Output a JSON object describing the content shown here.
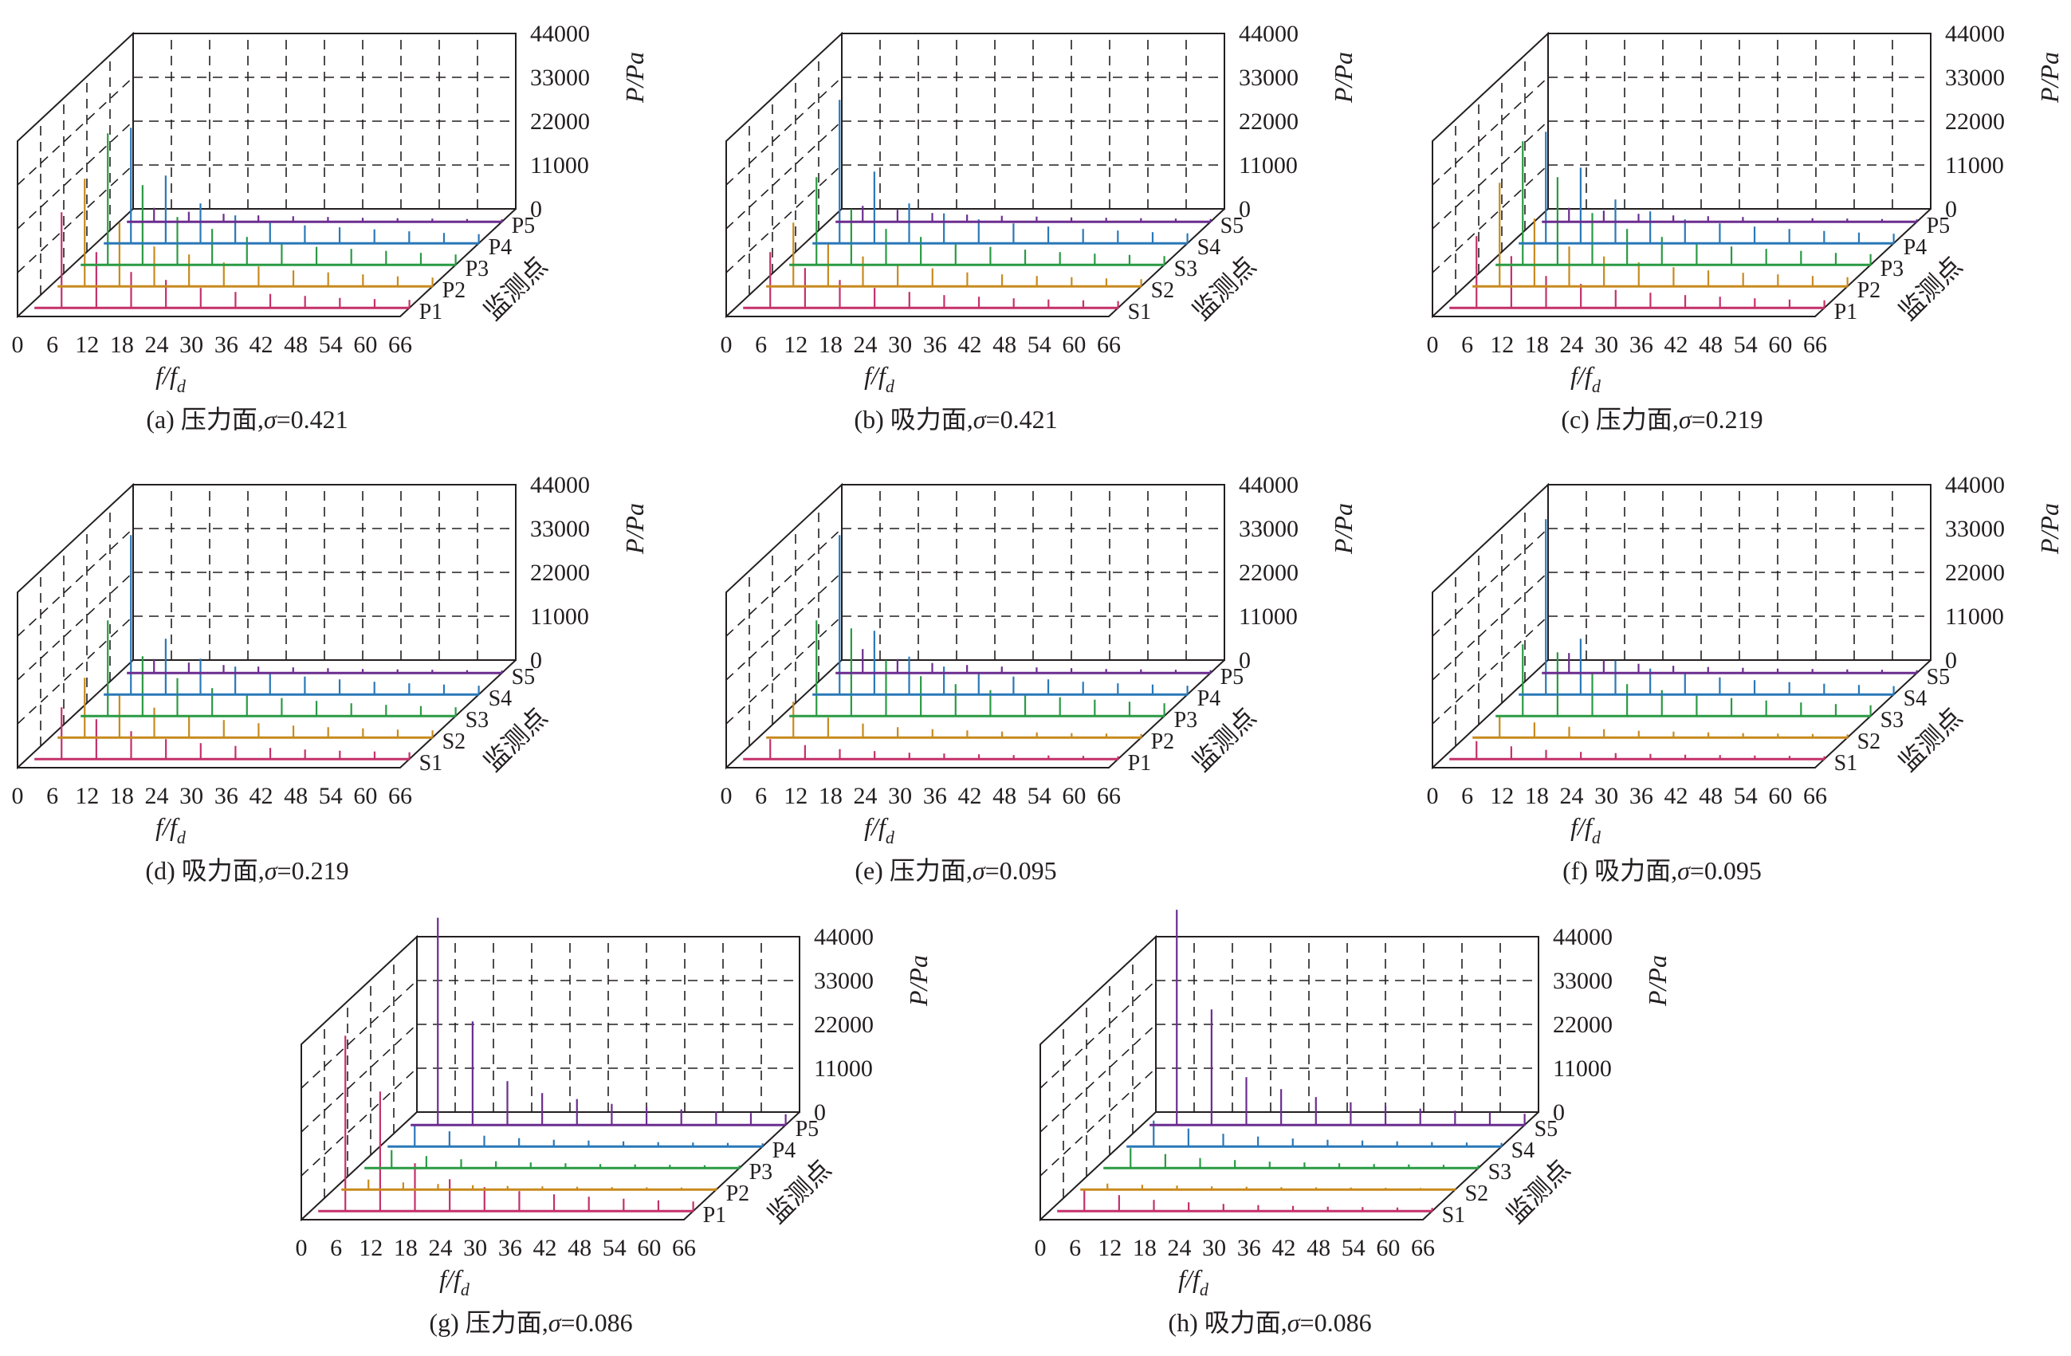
{
  "chart_data": [
    {
      "type": "3d-spectrum",
      "caption": "(a) 压力面,σ=0.421",
      "caption_prefix": "(a) 压力面,",
      "sigma_label": "σ",
      "sigma_value": "=0.421",
      "xlabel_main": "f/f",
      "xlabel_sub": "d",
      "zlabel": "P/Pa",
      "ylabel": "监测点",
      "x_ticks": [
        "0",
        "6",
        "12",
        "18",
        "24",
        "30",
        "36",
        "42",
        "48",
        "54",
        "60",
        "66"
      ],
      "z_ticks": [
        "0",
        "11000",
        "22000",
        "33000",
        "44000"
      ],
      "xlim": [
        0,
        66
      ],
      "zlim": [
        0,
        44000
      ],
      "series": [
        {
          "name": "P1",
          "color": "#c4306a",
          "values": [
            24000,
            14000,
            9000,
            7000,
            5000,
            4000,
            3500,
            3000,
            2500,
            2200,
            2000
          ]
        },
        {
          "name": "P2",
          "color": "#c88a1e",
          "values": [
            27000,
            16000,
            10000,
            8000,
            6000,
            5000,
            4000,
            3500,
            3000,
            2500,
            2200
          ]
        },
        {
          "name": "P3",
          "color": "#2a9a44",
          "values": [
            33000,
            20000,
            12000,
            9000,
            7000,
            5500,
            4500,
            4000,
            3500,
            3000,
            2600
          ]
        },
        {
          "name": "P4",
          "color": "#2a78b8",
          "values": [
            29000,
            17000,
            10000,
            7000,
            5500,
            4500,
            4000,
            3500,
            3000,
            2600,
            2300
          ]
        },
        {
          "name": "P5",
          "color": "#6b2d8f",
          "values": [
            3500,
            2500,
            2000,
            1600,
            1400,
            1200,
            1000,
            900,
            800,
            700,
            600
          ]
        }
      ]
    },
    {
      "type": "3d-spectrum",
      "caption": "(b) 吸力面,σ=0.421",
      "caption_prefix": "(b) 吸力面,",
      "sigma_label": "σ",
      "sigma_value": "=0.421",
      "xlabel_main": "f/f",
      "xlabel_sub": "d",
      "zlabel": "P/Pa",
      "ylabel": "监测点",
      "x_ticks": [
        "0",
        "6",
        "12",
        "18",
        "24",
        "30",
        "36",
        "42",
        "48",
        "54",
        "60",
        "66"
      ],
      "z_ticks": [
        "0",
        "11000",
        "22000",
        "33000",
        "44000"
      ],
      "xlim": [
        0,
        66
      ],
      "zlim": [
        0,
        44000
      ],
      "series": [
        {
          "name": "S1",
          "color": "#c4306a",
          "values": [
            14000,
            10000,
            7000,
            5000,
            4000,
            3200,
            2800,
            2400,
            2100,
            1900,
            1700
          ]
        },
        {
          "name": "S2",
          "color": "#c88a1e",
          "values": [
            16000,
            11000,
            7500,
            5500,
            4500,
            3500,
            3000,
            2600,
            2300,
            2000,
            1800
          ]
        },
        {
          "name": "S3",
          "color": "#2a9a44",
          "values": [
            22000,
            14000,
            9000,
            7000,
            5500,
            4500,
            3800,
            3200,
            2800,
            2500,
            2200
          ]
        },
        {
          "name": "S4",
          "color": "#2a78b8",
          "values": [
            36000,
            18000,
            10000,
            7500,
            6000,
            5000,
            4200,
            3600,
            3200,
            2800,
            2500
          ]
        },
        {
          "name": "S5",
          "color": "#6b2d8f",
          "values": [
            4000,
            3000,
            2200,
            1800,
            1500,
            1300,
            1100,
            1000,
            900,
            800,
            700
          ]
        }
      ]
    },
    {
      "type": "3d-spectrum",
      "caption": "(c) 压力面,σ=0.219",
      "caption_prefix": "(c) 压力面,",
      "sigma_label": "σ",
      "sigma_value": "=0.219",
      "xlabel_main": "f/f",
      "xlabel_sub": "d",
      "zlabel": "P/Pa",
      "ylabel": "监测点",
      "x_ticks": [
        "0",
        "6",
        "12",
        "18",
        "24",
        "30",
        "36",
        "42",
        "48",
        "54",
        "60",
        "66"
      ],
      "z_ticks": [
        "0",
        "11000",
        "22000",
        "33000",
        "44000"
      ],
      "xlim": [
        0,
        66
      ],
      "zlim": [
        0,
        44000
      ],
      "series": [
        {
          "name": "P1",
          "color": "#c4306a",
          "values": [
            18000,
            13000,
            8000,
            6000,
            4500,
            3800,
            3200,
            2800,
            2400,
            2100,
            1900
          ]
        },
        {
          "name": "P2",
          "color": "#c88a1e",
          "values": [
            26000,
            17000,
            10000,
            7500,
            6000,
            4800,
            4000,
            3400,
            3000,
            2600,
            2300
          ]
        },
        {
          "name": "P3",
          "color": "#2a9a44",
          "values": [
            31000,
            22000,
            13000,
            9000,
            7000,
            5500,
            4600,
            4000,
            3500,
            3000,
            2700
          ]
        },
        {
          "name": "P4",
          "color": "#2a78b8",
          "values": [
            28000,
            19000,
            11000,
            8000,
            6000,
            5000,
            4200,
            3600,
            3100,
            2700,
            2400
          ]
        },
        {
          "name": "P5",
          "color": "#6b2d8f",
          "values": [
            3500,
            2800,
            2000,
            1600,
            1400,
            1200,
            1000,
            900,
            800,
            700,
            600
          ]
        }
      ]
    },
    {
      "type": "3d-spectrum",
      "caption": "(d) 吸力面,σ=0.219",
      "caption_prefix": "(d) 吸力面,",
      "sigma_label": "σ",
      "sigma_value": "=0.219",
      "xlabel_main": "f/f",
      "xlabel_sub": "d",
      "zlabel": "P/Pa",
      "ylabel": "监测点",
      "x_ticks": [
        "0",
        "6",
        "12",
        "18",
        "24",
        "30",
        "36",
        "42",
        "48",
        "54",
        "60",
        "66"
      ],
      "z_ticks": [
        "0",
        "11000",
        "22000",
        "33000",
        "44000"
      ],
      "xlim": [
        0,
        66
      ],
      "zlim": [
        0,
        44000
      ],
      "series": [
        {
          "name": "S1",
          "color": "#c4306a",
          "values": [
            13000,
            10000,
            7000,
            5000,
            4000,
            3300,
            2800,
            2400,
            2100,
            1900,
            1700
          ]
        },
        {
          "name": "S2",
          "color": "#c88a1e",
          "values": [
            15000,
            11000,
            7500,
            5500,
            4400,
            3600,
            3000,
            2600,
            2300,
            2000,
            1800
          ]
        },
        {
          "name": "S3",
          "color": "#2a9a44",
          "values": [
            24000,
            15000,
            9500,
            7000,
            5500,
            4500,
            3800,
            3200,
            2800,
            2500,
            2200
          ]
        },
        {
          "name": "S4",
          "color": "#2a78b8",
          "values": [
            40000,
            14000,
            9000,
            7000,
            5500,
            4500,
            3800,
            3200,
            2800,
            2500,
            2200
          ]
        },
        {
          "name": "S5",
          "color": "#6b2d8f",
          "values": [
            3500,
            2600,
            2000,
            1600,
            1400,
            1200,
            1000,
            900,
            800,
            700,
            600
          ]
        }
      ]
    },
    {
      "type": "3d-spectrum",
      "caption": "(e) 压力面,σ=0.095",
      "caption_prefix": "(e) 压力面,",
      "sigma_label": "σ",
      "sigma_value": "=0.095",
      "xlabel_main": "f/f",
      "xlabel_sub": "d",
      "zlabel": "P/Pa",
      "ylabel": "监测点",
      "x_ticks": [
        "0",
        "6",
        "12",
        "18",
        "24",
        "30",
        "36",
        "42",
        "48",
        "54",
        "60",
        "66"
      ],
      "z_ticks": [
        "0",
        "11000",
        "22000",
        "33000",
        "44000"
      ],
      "xlim": [
        0,
        66
      ],
      "zlim": [
        0,
        44000
      ],
      "series": [
        {
          "name": "P1",
          "color": "#c4306a",
          "values": [
            5000,
            3500,
            2500,
            2000,
            1600,
            1400,
            1200,
            1000,
            900,
            800,
            700
          ]
        },
        {
          "name": "P2",
          "color": "#c88a1e",
          "values": [
            9000,
            5000,
            3500,
            2600,
            2100,
            1800,
            1500,
            1300,
            1100,
            1000,
            900
          ]
        },
        {
          "name": "P3",
          "color": "#2a9a44",
          "values": [
            24000,
            22000,
            14000,
            10000,
            8000,
            6500,
            5500,
            4700,
            4100,
            3600,
            3200
          ]
        },
        {
          "name": "P4",
          "color": "#2a78b8",
          "values": [
            40000,
            16000,
            9500,
            7000,
            5500,
            4500,
            3800,
            3200,
            2800,
            2500,
            2200
          ]
        },
        {
          "name": "P5",
          "color": "#6b2d8f",
          "values": [
            6000,
            3500,
            2500,
            2000,
            1600,
            1400,
            1200,
            1000,
            900,
            800,
            700
          ]
        }
      ]
    },
    {
      "type": "3d-spectrum",
      "caption": "(f) 吸力面,σ=0.095",
      "caption_prefix": "(f) 吸力面,",
      "sigma_label": "σ",
      "sigma_value": "=0.095",
      "xlabel_main": "f/f",
      "xlabel_sub": "d",
      "zlabel": "P/Pa",
      "ylabel": "监测点",
      "x_ticks": [
        "0",
        "6",
        "12",
        "18",
        "24",
        "30",
        "36",
        "42",
        "48",
        "54",
        "60",
        "66"
      ],
      "z_ticks": [
        "0",
        "11000",
        "22000",
        "33000",
        "44000"
      ],
      "xlim": [
        0,
        66
      ],
      "zlim": [
        0,
        44000
      ],
      "series": [
        {
          "name": "S1",
          "color": "#c4306a",
          "values": [
            4500,
            3200,
            2300,
            1800,
            1500,
            1300,
            1100,
            1000,
            900,
            800,
            700
          ]
        },
        {
          "name": "S2",
          "color": "#c88a1e",
          "values": [
            5500,
            3800,
            2700,
            2100,
            1700,
            1500,
            1300,
            1100,
            1000,
            900,
            800
          ]
        },
        {
          "name": "S3",
          "color": "#2a9a44",
          "values": [
            18000,
            16000,
            11000,
            8000,
            6500,
            5300,
            4500,
            3900,
            3400,
            3000,
            2700
          ]
        },
        {
          "name": "S4",
          "color": "#2a78b8",
          "values": [
            44000,
            14000,
            8500,
            6500,
            5200,
            4300,
            3600,
            3100,
            2700,
            2400,
            2100
          ]
        },
        {
          "name": "S5",
          "color": "#6b2d8f",
          "values": [
            5000,
            3200,
            2300,
            1800,
            1500,
            1300,
            1100,
            1000,
            900,
            800,
            700
          ]
        }
      ]
    },
    {
      "type": "3d-spectrum",
      "caption": "(g) 压力面,σ=0.086",
      "caption_prefix": "(g) 压力面,",
      "sigma_label": "σ",
      "sigma_value": "=0.086",
      "xlabel_main": "f/f",
      "xlabel_sub": "d",
      "zlabel": "P/Pa",
      "ylabel": "监测点",
      "x_ticks": [
        "0",
        "6",
        "12",
        "18",
        "24",
        "30",
        "36",
        "42",
        "48",
        "54",
        "60",
        "66"
      ],
      "z_ticks": [
        "0",
        "11000",
        "22000",
        "33000",
        "44000"
      ],
      "xlim": [
        0,
        66
      ],
      "zlim": [
        0,
        44000
      ],
      "series": [
        {
          "name": "P1",
          "color": "#c4306a",
          "values": [
            44000,
            30000,
            12000,
            8000,
            6000,
            5000,
            4200,
            3600,
            3100,
            2700,
            2400
          ]
        },
        {
          "name": "P2",
          "color": "#c88a1e",
          "values": [
            2500,
            1800,
            1400,
            1100,
            900,
            800,
            700,
            600,
            550,
            500,
            450
          ]
        },
        {
          "name": "P3",
          "color": "#2a9a44",
          "values": [
            4500,
            3000,
            2200,
            1700,
            1400,
            1200,
            1000,
            900,
            800,
            700,
            650
          ]
        },
        {
          "name": "P4",
          "color": "#2a78b8",
          "values": [
            5500,
            3800,
            2700,
            2100,
            1700,
            1500,
            1300,
            1100,
            1000,
            900,
            800
          ]
        },
        {
          "name": "P5",
          "color": "#6b2d8f",
          "values": [
            52000,
            26000,
            11000,
            8000,
            6500,
            5300,
            4500,
            3900,
            3400,
            3000,
            2700
          ]
        }
      ]
    },
    {
      "type": "3d-spectrum",
      "caption": "(h) 吸力面,σ=0.086",
      "caption_prefix": "(h) 吸力面,",
      "sigma_label": "σ",
      "sigma_value": "=0.086",
      "xlabel_main": "f/f",
      "xlabel_sub": "d",
      "zlabel": "P/Pa",
      "ylabel": "监测点",
      "x_ticks": [
        "0",
        "6",
        "12",
        "18",
        "24",
        "30",
        "36",
        "42",
        "48",
        "54",
        "60",
        "66"
      ],
      "z_ticks": [
        "0",
        "11000",
        "22000",
        "33000",
        "44000"
      ],
      "xlim": [
        0,
        66
      ],
      "zlim": [
        0,
        44000
      ],
      "series": [
        {
          "name": "S1",
          "color": "#c4306a",
          "values": [
            5500,
            4000,
            2800,
            2200,
            1800,
            1500,
            1300,
            1100,
            1000,
            900,
            800
          ]
        },
        {
          "name": "S2",
          "color": "#c88a1e",
          "values": [
            1500,
            1200,
            1000,
            800,
            700,
            600,
            550,
            500,
            450,
            400,
            380
          ]
        },
        {
          "name": "S3",
          "color": "#2a9a44",
          "values": [
            5000,
            3500,
            2500,
            2000,
            1600,
            1400,
            1200,
            1000,
            900,
            800,
            700
          ]
        },
        {
          "name": "S4",
          "color": "#2a78b8",
          "values": [
            6500,
            4500,
            3200,
            2500,
            2000,
            1700,
            1500,
            1300,
            1100,
            1000,
            900
          ]
        },
        {
          "name": "S5",
          "color": "#6b2d8f",
          "values": [
            54000,
            29000,
            12000,
            9000,
            7000,
            5700,
            4800,
            4100,
            3600,
            3200,
            2800
          ]
        }
      ]
    }
  ]
}
